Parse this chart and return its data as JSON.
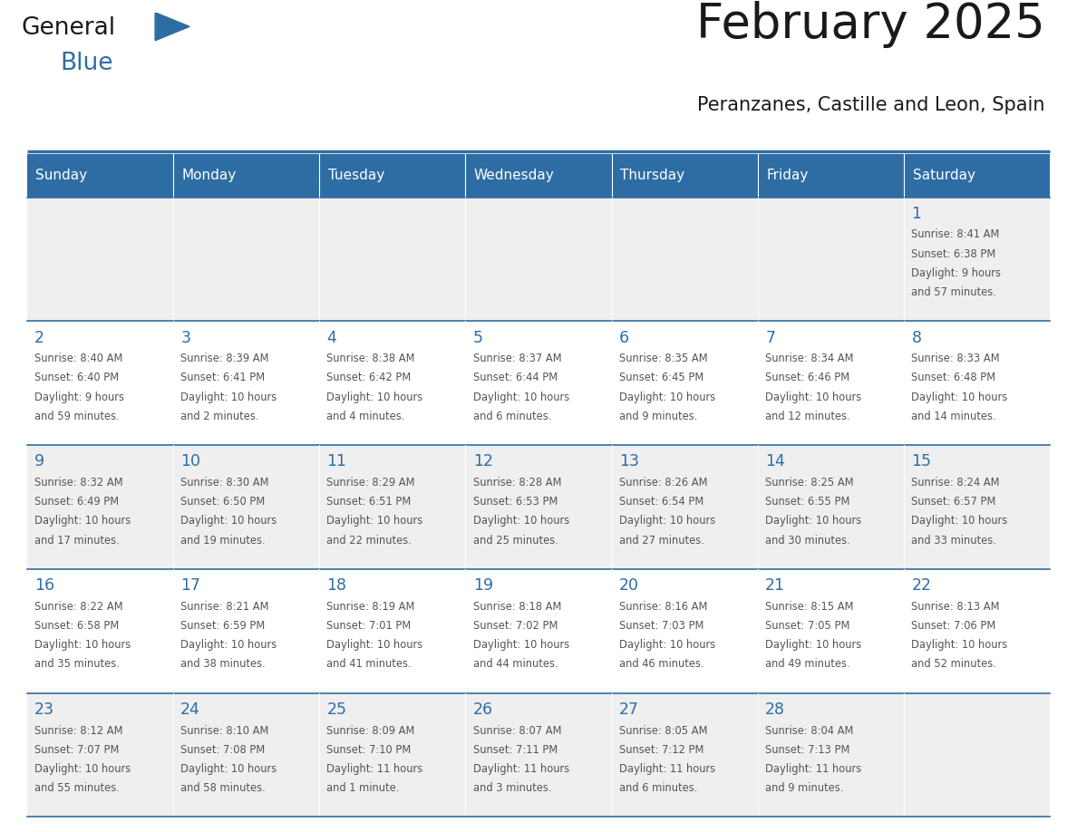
{
  "title": "February 2025",
  "subtitle": "Peranzanes, Castille and Leon, Spain",
  "header_bg_color": "#2e6da4",
  "header_text_color": "#ffffff",
  "row_bg_even": "#efefef",
  "row_bg_odd": "#ffffff",
  "day_number_color": "#2e6da4",
  "text_color": "#555555",
  "border_color": "#2e6da4",
  "separator_color": "#2e6da4",
  "days_of_week": [
    "Sunday",
    "Monday",
    "Tuesday",
    "Wednesday",
    "Thursday",
    "Friday",
    "Saturday"
  ],
  "weeks": [
    [
      {
        "day": "",
        "lines": []
      },
      {
        "day": "",
        "lines": []
      },
      {
        "day": "",
        "lines": []
      },
      {
        "day": "",
        "lines": []
      },
      {
        "day": "",
        "lines": []
      },
      {
        "day": "",
        "lines": []
      },
      {
        "day": "1",
        "lines": [
          "Sunrise: 8:41 AM",
          "Sunset: 6:38 PM",
          "Daylight: 9 hours",
          "and 57 minutes."
        ]
      }
    ],
    [
      {
        "day": "2",
        "lines": [
          "Sunrise: 8:40 AM",
          "Sunset: 6:40 PM",
          "Daylight: 9 hours",
          "and 59 minutes."
        ]
      },
      {
        "day": "3",
        "lines": [
          "Sunrise: 8:39 AM",
          "Sunset: 6:41 PM",
          "Daylight: 10 hours",
          "and 2 minutes."
        ]
      },
      {
        "day": "4",
        "lines": [
          "Sunrise: 8:38 AM",
          "Sunset: 6:42 PM",
          "Daylight: 10 hours",
          "and 4 minutes."
        ]
      },
      {
        "day": "5",
        "lines": [
          "Sunrise: 8:37 AM",
          "Sunset: 6:44 PM",
          "Daylight: 10 hours",
          "and 6 minutes."
        ]
      },
      {
        "day": "6",
        "lines": [
          "Sunrise: 8:35 AM",
          "Sunset: 6:45 PM",
          "Daylight: 10 hours",
          "and 9 minutes."
        ]
      },
      {
        "day": "7",
        "lines": [
          "Sunrise: 8:34 AM",
          "Sunset: 6:46 PM",
          "Daylight: 10 hours",
          "and 12 minutes."
        ]
      },
      {
        "day": "8",
        "lines": [
          "Sunrise: 8:33 AM",
          "Sunset: 6:48 PM",
          "Daylight: 10 hours",
          "and 14 minutes."
        ]
      }
    ],
    [
      {
        "day": "9",
        "lines": [
          "Sunrise: 8:32 AM",
          "Sunset: 6:49 PM",
          "Daylight: 10 hours",
          "and 17 minutes."
        ]
      },
      {
        "day": "10",
        "lines": [
          "Sunrise: 8:30 AM",
          "Sunset: 6:50 PM",
          "Daylight: 10 hours",
          "and 19 minutes."
        ]
      },
      {
        "day": "11",
        "lines": [
          "Sunrise: 8:29 AM",
          "Sunset: 6:51 PM",
          "Daylight: 10 hours",
          "and 22 minutes."
        ]
      },
      {
        "day": "12",
        "lines": [
          "Sunrise: 8:28 AM",
          "Sunset: 6:53 PM",
          "Daylight: 10 hours",
          "and 25 minutes."
        ]
      },
      {
        "day": "13",
        "lines": [
          "Sunrise: 8:26 AM",
          "Sunset: 6:54 PM",
          "Daylight: 10 hours",
          "and 27 minutes."
        ]
      },
      {
        "day": "14",
        "lines": [
          "Sunrise: 8:25 AM",
          "Sunset: 6:55 PM",
          "Daylight: 10 hours",
          "and 30 minutes."
        ]
      },
      {
        "day": "15",
        "lines": [
          "Sunrise: 8:24 AM",
          "Sunset: 6:57 PM",
          "Daylight: 10 hours",
          "and 33 minutes."
        ]
      }
    ],
    [
      {
        "day": "16",
        "lines": [
          "Sunrise: 8:22 AM",
          "Sunset: 6:58 PM",
          "Daylight: 10 hours",
          "and 35 minutes."
        ]
      },
      {
        "day": "17",
        "lines": [
          "Sunrise: 8:21 AM",
          "Sunset: 6:59 PM",
          "Daylight: 10 hours",
          "and 38 minutes."
        ]
      },
      {
        "day": "18",
        "lines": [
          "Sunrise: 8:19 AM",
          "Sunset: 7:01 PM",
          "Daylight: 10 hours",
          "and 41 minutes."
        ]
      },
      {
        "day": "19",
        "lines": [
          "Sunrise: 8:18 AM",
          "Sunset: 7:02 PM",
          "Daylight: 10 hours",
          "and 44 minutes."
        ]
      },
      {
        "day": "20",
        "lines": [
          "Sunrise: 8:16 AM",
          "Sunset: 7:03 PM",
          "Daylight: 10 hours",
          "and 46 minutes."
        ]
      },
      {
        "day": "21",
        "lines": [
          "Sunrise: 8:15 AM",
          "Sunset: 7:05 PM",
          "Daylight: 10 hours",
          "and 49 minutes."
        ]
      },
      {
        "day": "22",
        "lines": [
          "Sunrise: 8:13 AM",
          "Sunset: 7:06 PM",
          "Daylight: 10 hours",
          "and 52 minutes."
        ]
      }
    ],
    [
      {
        "day": "23",
        "lines": [
          "Sunrise: 8:12 AM",
          "Sunset: 7:07 PM",
          "Daylight: 10 hours",
          "and 55 minutes."
        ]
      },
      {
        "day": "24",
        "lines": [
          "Sunrise: 8:10 AM",
          "Sunset: 7:08 PM",
          "Daylight: 10 hours",
          "and 58 minutes."
        ]
      },
      {
        "day": "25",
        "lines": [
          "Sunrise: 8:09 AM",
          "Sunset: 7:10 PM",
          "Daylight: 11 hours",
          "and 1 minute."
        ]
      },
      {
        "day": "26",
        "lines": [
          "Sunrise: 8:07 AM",
          "Sunset: 7:11 PM",
          "Daylight: 11 hours",
          "and 3 minutes."
        ]
      },
      {
        "day": "27",
        "lines": [
          "Sunrise: 8:05 AM",
          "Sunset: 7:12 PM",
          "Daylight: 11 hours",
          "and 6 minutes."
        ]
      },
      {
        "day": "28",
        "lines": [
          "Sunrise: 8:04 AM",
          "Sunset: 7:13 PM",
          "Daylight: 11 hours",
          "and 9 minutes."
        ]
      },
      {
        "day": "",
        "lines": []
      }
    ]
  ]
}
